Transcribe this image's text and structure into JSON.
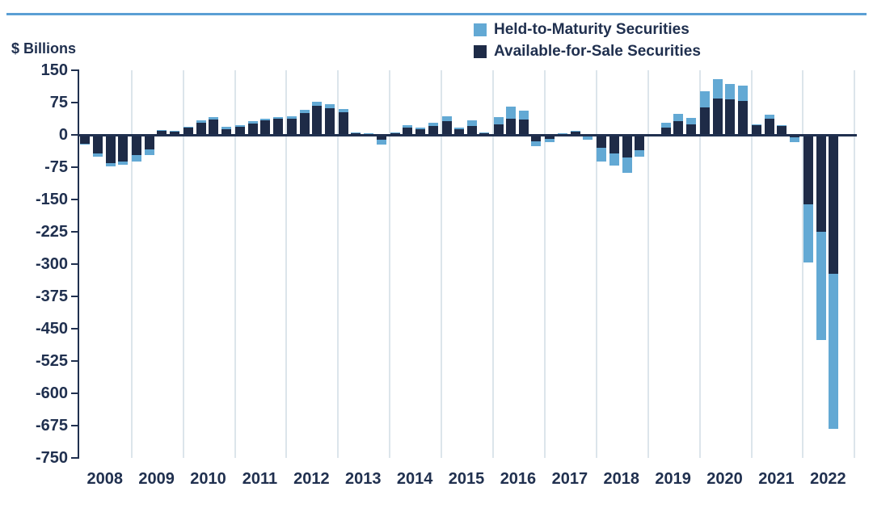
{
  "top_rule_color": "#5b9fd4",
  "text_color": "#20304f",
  "gridline_color": "#dce5eb",
  "legend": [
    {
      "label": "Held-to-Maturity Securities",
      "color": "#63a9d4"
    },
    {
      "label": "Available-for-Sale Securities",
      "color": "#1e2b47"
    }
  ],
  "chart_data": {
    "type": "bar",
    "stacked": true,
    "title": "",
    "ylabel": "$ Billions",
    "xlabel": "",
    "ylim": [
      -750,
      150
    ],
    "y_ticks": [
      150,
      75,
      0,
      -75,
      -150,
      -225,
      -300,
      -375,
      -450,
      -525,
      -600,
      -675,
      -750
    ],
    "grid": "vertical-year-lines",
    "legend_position": "top-right",
    "categories": [
      "2008",
      "2009",
      "2010",
      "2011",
      "2012",
      "2013",
      "2014",
      "2015",
      "2016",
      "2017",
      "2018",
      "2019",
      "2020",
      "2021",
      "2022"
    ],
    "quarters": [
      "2008 Q1",
      "2008 Q2",
      "2008 Q3",
      "2008 Q4",
      "2009 Q1",
      "2009 Q2",
      "2009 Q3",
      "2009 Q4",
      "2010 Q1",
      "2010 Q2",
      "2010 Q3",
      "2010 Q4",
      "2011 Q1",
      "2011 Q2",
      "2011 Q3",
      "2011 Q4",
      "2012 Q1",
      "2012 Q2",
      "2012 Q3",
      "2012 Q4",
      "2013 Q1",
      "2013 Q2",
      "2013 Q3",
      "2013 Q4",
      "2014 Q1",
      "2014 Q2",
      "2014 Q3",
      "2014 Q4",
      "2015 Q1",
      "2015 Q2",
      "2015 Q3",
      "2015 Q4",
      "2016 Q1",
      "2016 Q2",
      "2016 Q3",
      "2016 Q4",
      "2017 Q1",
      "2017 Q2",
      "2017 Q3",
      "2017 Q4",
      "2018 Q1",
      "2018 Q2",
      "2018 Q3",
      "2018 Q4",
      "2019 Q1",
      "2019 Q2",
      "2019 Q3",
      "2019 Q4",
      "2020 Q1",
      "2020 Q2",
      "2020 Q3",
      "2020 Q4",
      "2021 Q1",
      "2021 Q2",
      "2021 Q3",
      "2021 Q4",
      "2022 Q1",
      "2022 Q2",
      "2022 Q3"
    ],
    "stack_order": [
      "Available-for-Sale Securities",
      "Held-to-Maturity Securities"
    ],
    "series": [
      {
        "name": "Available-for-Sale Securities",
        "color": "#1e2b47",
        "values": [
          -21,
          -43,
          -65,
          -61,
          -46,
          -34,
          10,
          8,
          16,
          29,
          36,
          14,
          19,
          27,
          33,
          37,
          38,
          51,
          67,
          61,
          52,
          5,
          3,
          -12,
          5,
          16,
          14,
          20,
          32,
          14,
          20,
          5,
          25,
          38,
          35,
          -15,
          -9,
          3,
          7,
          -4,
          -30,
          -43,
          -52,
          -36,
          -2,
          17,
          32,
          25,
          63,
          85,
          82,
          79,
          23,
          38,
          22,
          -6,
          -161,
          -225,
          -322
        ]
      },
      {
        "name": "Held-to-Maturity Securities",
        "color": "#63a9d4",
        "values": [
          -2,
          -8,
          -8,
          -8,
          -15,
          -12,
          1,
          1,
          2,
          5,
          6,
          4,
          3,
          4,
          5,
          5,
          6,
          8,
          10,
          10,
          8,
          1,
          1,
          -11,
          1,
          6,
          3,
          9,
          11,
          2,
          14,
          1,
          17,
          27,
          22,
          -11,
          -7,
          1,
          2,
          -7,
          -32,
          -28,
          -36,
          -14,
          -2,
          12,
          16,
          14,
          38,
          44,
          37,
          36,
          1,
          9,
          1,
          -10,
          -136,
          -252,
          -360
        ]
      }
    ]
  }
}
